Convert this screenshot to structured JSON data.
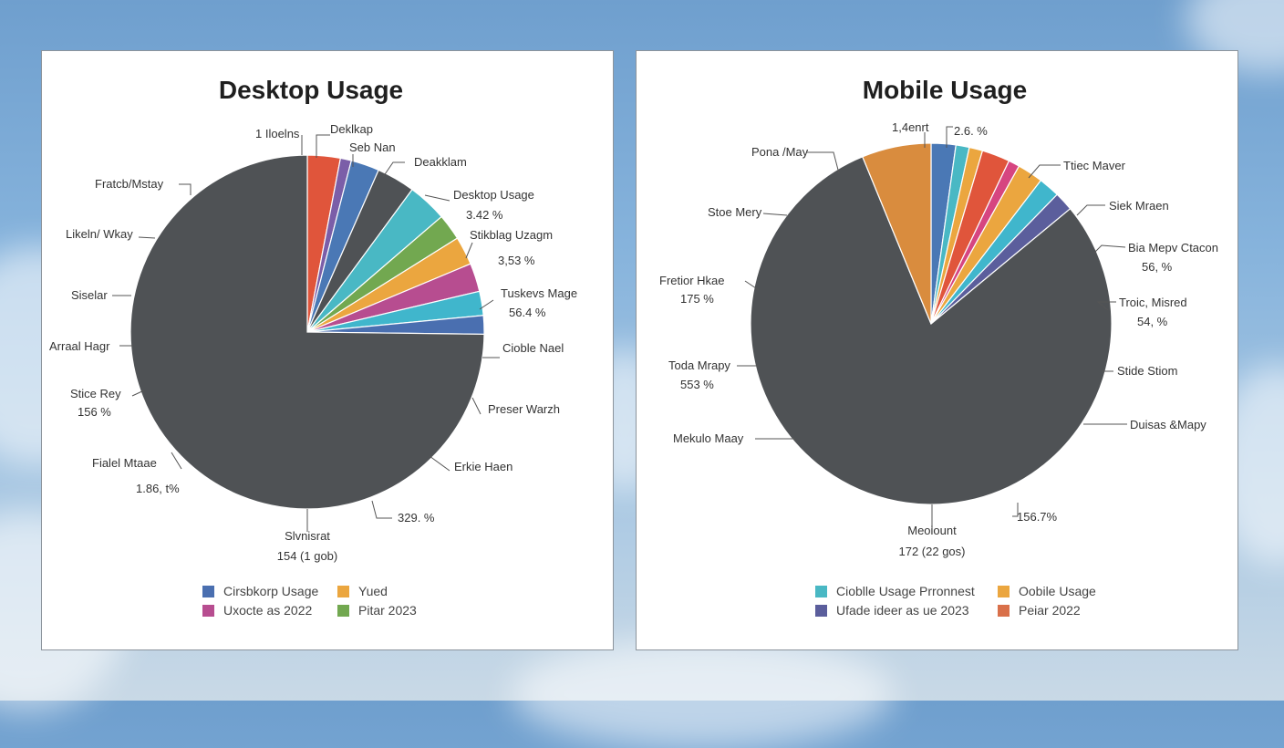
{
  "chart_data": [
    {
      "type": "pie",
      "title": "Desktop Usage",
      "slices": [
        {
          "value": 3.0,
          "color": "#e0553b"
        },
        {
          "value": 1.0,
          "color": "#7b5ea8"
        },
        {
          "value": 2.6,
          "color": "#4a78b5"
        },
        {
          "value": 3.5,
          "color": "#4f5255"
        },
        {
          "value": 3.6,
          "color": "#49b8c4"
        },
        {
          "value": 2.4,
          "color": "#72a850"
        },
        {
          "value": 2.6,
          "color": "#eba63f"
        },
        {
          "value": 2.6,
          "color": "#b74d90"
        },
        {
          "value": 2.2,
          "color": "#40b6cc"
        },
        {
          "value": 1.7,
          "color": "#4a6fb0"
        },
        {
          "value": 74.8,
          "color": "#4f5255"
        }
      ],
      "labels": [
        {
          "text": "1 Iloelns"
        },
        {
          "text": "Deklkap"
        },
        {
          "text": "Seb Nan"
        },
        {
          "text": "Deakklam"
        },
        {
          "text": "Desktop Usage",
          "value": "3.42 %"
        },
        {
          "text": "Stikblag Uzagm",
          "value": "3,53 %"
        },
        {
          "text": "Tuskevs Mage",
          "value": "56.4 %"
        },
        {
          "text": "Cioble Nael"
        },
        {
          "text": "Preser Warzh"
        },
        {
          "text": "Erkie Haen"
        },
        {
          "text": "329. %"
        },
        {
          "text": "Slvnisrat",
          "value": "154 (1 gob)"
        },
        {
          "text": "Fialel Mtaae"
        },
        {
          "text": "1.86, t%"
        },
        {
          "text": "Stice Rey",
          "value": "156 %"
        },
        {
          "text": "Arraal Hagr"
        },
        {
          "text": "Siselar"
        },
        {
          "text": "Likeln/ Wkay"
        },
        {
          "text": "Fratcb/Mstay"
        }
      ],
      "legend": [
        {
          "label": "Cirsbkorp Usage",
          "color": "#4a6fb0"
        },
        {
          "label": "Yued",
          "color": "#eba63f"
        },
        {
          "label": "Uxocte as 2022",
          "color": "#b74d90"
        },
        {
          "label": "Pitar 2023",
          "color": "#72a850"
        }
      ]
    },
    {
      "type": "pie",
      "title": "Mobile Usage",
      "slices": [
        {
          "value": 2.2,
          "color": "#4a78b5"
        },
        {
          "value": 1.2,
          "color": "#49b8c4"
        },
        {
          "value": 1.2,
          "color": "#eba63f"
        },
        {
          "value": 2.5,
          "color": "#e0553b"
        },
        {
          "value": 1.0,
          "color": "#d64580"
        },
        {
          "value": 2.3,
          "color": "#eba63f"
        },
        {
          "value": 1.9,
          "color": "#40b6cc"
        },
        {
          "value": 1.7,
          "color": "#5b5e9c"
        },
        {
          "value": 79.8,
          "color": "#4f5255"
        },
        {
          "value": 6.2,
          "color": "#d98c3e"
        }
      ],
      "labels": [
        {
          "text": "1,4enrt"
        },
        {
          "text": "2.6. %"
        },
        {
          "text": "Pona /May"
        },
        {
          "text": "Ttiec Maver"
        },
        {
          "text": "Siek Mraen"
        },
        {
          "text": "Bia Mepv Ctacon",
          "value": "56, %"
        },
        {
          "text": "Troic, Misred",
          "value": "54, %"
        },
        {
          "text": "Stide Stiom"
        },
        {
          "text": "Duisas &Mapy"
        },
        {
          "text": "156.7%"
        },
        {
          "text": "Meoiount",
          "value": "172 (22 gos)"
        },
        {
          "text": "Mekulo Maay"
        },
        {
          "text": "Toda Mrapy",
          "value": "553 %"
        },
        {
          "text": "Fretior Hkae",
          "value": "175 %"
        },
        {
          "text": "Stoe Mery"
        }
      ],
      "legend": [
        {
          "label": "Cioblle Usage Prronnest",
          "color": "#49b8c4"
        },
        {
          "label": "Oobile Usage",
          "color": "#eba63f"
        },
        {
          "label": "Ufade ideer as ue 2023",
          "color": "#5b5e9c"
        },
        {
          "label": "Peiar 2022",
          "color": "#d9704a"
        }
      ]
    }
  ]
}
